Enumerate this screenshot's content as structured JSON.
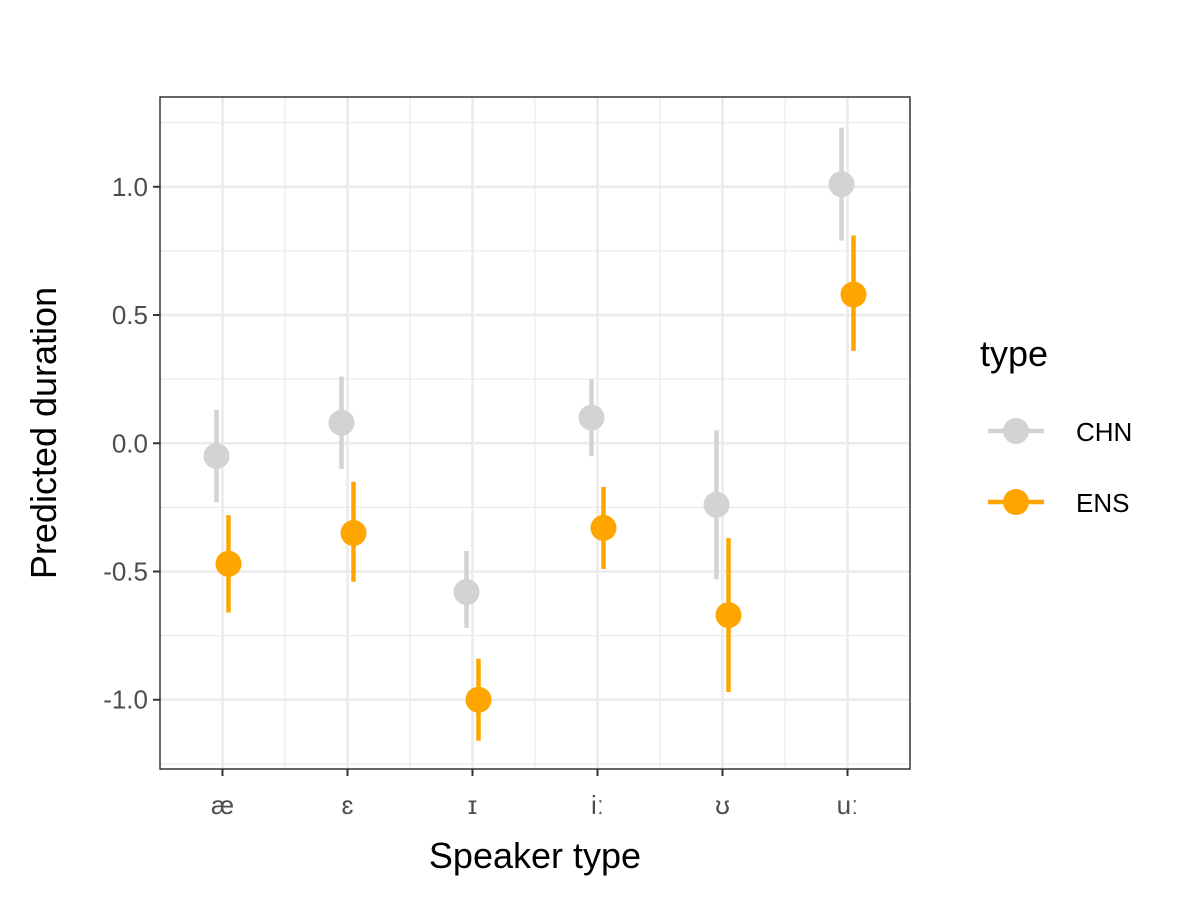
{
  "chart_data": {
    "type": "scatter",
    "title": "",
    "xlabel": "Speaker type",
    "ylabel": "Predicted duration",
    "categories": [
      "æ",
      "ɛ",
      "ɪ",
      "iː",
      "ʊ",
      "uː"
    ],
    "ylim": [
      -1.27,
      1.35
    ],
    "yticks": [
      1.0,
      0.5,
      0.0,
      -0.5,
      -1.0
    ],
    "ytick_labels": [
      "1.0",
      "0.5",
      "0.0",
      "-0.5",
      "-1.0"
    ],
    "grid": true,
    "legend": {
      "title": "type",
      "position": "right"
    },
    "series": [
      {
        "name": "CHN",
        "color": "#d3d3d3",
        "values": [
          -0.05,
          0.08,
          -0.58,
          0.1,
          -0.24,
          1.01
        ],
        "lower": [
          -0.23,
          -0.1,
          -0.72,
          -0.05,
          -0.53,
          0.79
        ],
        "upper": [
          0.13,
          0.26,
          -0.42,
          0.25,
          0.05,
          1.23
        ]
      },
      {
        "name": "ENS",
        "color": "#ffa500",
        "values": [
          -0.47,
          -0.35,
          -1.0,
          -0.33,
          -0.67,
          0.58
        ],
        "lower": [
          -0.66,
          -0.54,
          -1.16,
          -0.49,
          -0.97,
          0.36
        ],
        "upper": [
          -0.28,
          -0.15,
          -0.84,
          -0.17,
          -0.37,
          0.81
        ]
      }
    ]
  }
}
